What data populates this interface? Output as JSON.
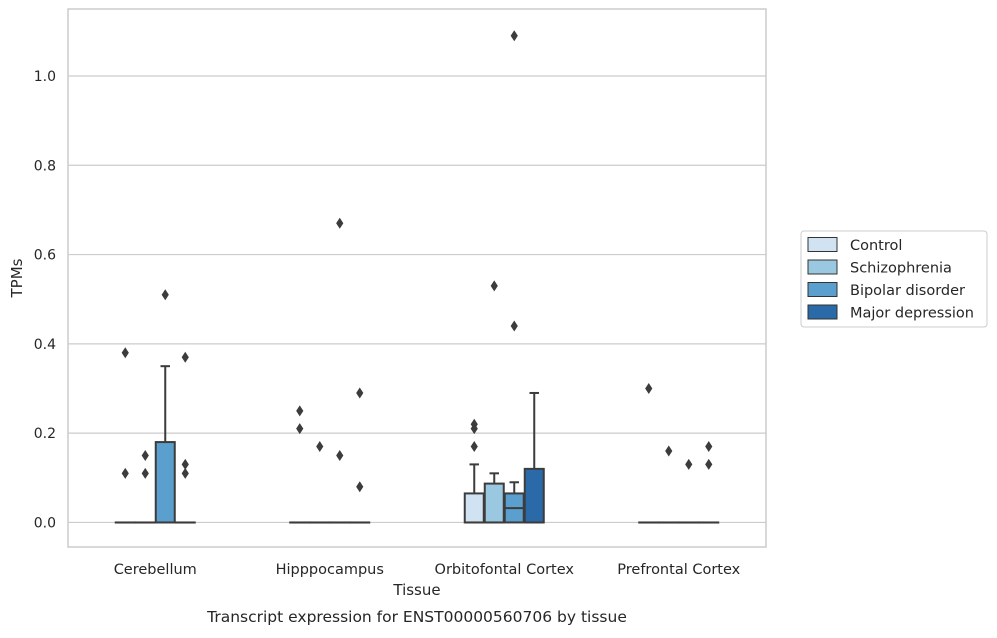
{
  "chart_data": {
    "type": "boxplot",
    "title": "",
    "caption": "Transcript expression for ENST00000560706 by tissue",
    "xlabel": "Tissue",
    "ylabel": "TPMs",
    "ylim": [
      -0.055,
      1.15
    ],
    "yticks": [
      0.0,
      0.2,
      0.4,
      0.6,
      0.8,
      1.0
    ],
    "ytick_labels": [
      "0.0",
      "0.2",
      "0.4",
      "0.6",
      "0.8",
      "1.0"
    ],
    "grid": "horizontal",
    "legend_position": "right",
    "categories": [
      "Cerebellum",
      "Hipppocampus",
      "Orbitofontal Cortex",
      "Prefrontal Cortex"
    ],
    "series": [
      {
        "name": "Control",
        "color": "#d1e2f2",
        "boxes": [
          {
            "q1": 0,
            "median": 0,
            "q3": 0,
            "whisker_low": 0,
            "whisker_high": 0,
            "outliers": [
              0.38,
              0.11
            ]
          },
          {
            "q1": 0,
            "median": 0,
            "q3": 0,
            "whisker_low": 0,
            "whisker_high": 0,
            "outliers": [
              0.25,
              0.21
            ]
          },
          {
            "q1": 0,
            "median": 0,
            "q3": 0.065,
            "whisker_low": 0,
            "whisker_high": 0.13,
            "outliers": [
              0.22,
              0.21,
              0.17
            ]
          },
          {
            "q1": 0,
            "median": 0,
            "q3": 0,
            "whisker_low": 0,
            "whisker_high": 0,
            "outliers": [
              0.3
            ]
          }
        ]
      },
      {
        "name": "Schizophrenia",
        "color": "#9ac8e0",
        "boxes": [
          {
            "q1": 0,
            "median": 0,
            "q3": 0,
            "whisker_low": 0,
            "whisker_high": 0,
            "outliers": [
              0.15,
              0.11
            ]
          },
          {
            "q1": 0,
            "median": 0,
            "q3": 0,
            "whisker_low": 0,
            "whisker_high": 0,
            "outliers": [
              0.17
            ]
          },
          {
            "q1": 0,
            "median": 0,
            "q3": 0.087,
            "whisker_low": 0,
            "whisker_high": 0.11,
            "outliers": [
              0.53
            ]
          },
          {
            "q1": 0,
            "median": 0,
            "q3": 0,
            "whisker_low": 0,
            "whisker_high": 0,
            "outliers": [
              0.16
            ]
          }
        ]
      },
      {
        "name": "Bipolar disorder",
        "color": "#5a9fcd",
        "boxes": [
          {
            "q1": 0,
            "median": 0,
            "q3": 0.18,
            "whisker_low": 0,
            "whisker_high": 0.35,
            "outliers": [
              0.51
            ]
          },
          {
            "q1": 0,
            "median": 0,
            "q3": 0,
            "whisker_low": 0,
            "whisker_high": 0,
            "outliers": [
              0.67,
              0.15
            ]
          },
          {
            "q1": 0,
            "median": 0.032,
            "q3": 0.065,
            "whisker_low": 0,
            "whisker_high": 0.09,
            "outliers": [
              1.09,
              0.44
            ]
          },
          {
            "q1": 0,
            "median": 0,
            "q3": 0,
            "whisker_low": 0,
            "whisker_high": 0,
            "outliers": [
              0.13
            ]
          }
        ]
      },
      {
        "name": "Major depression",
        "color": "#2b6aa8",
        "boxes": [
          {
            "q1": 0,
            "median": 0,
            "q3": 0,
            "whisker_low": 0,
            "whisker_high": 0,
            "outliers": [
              0.37,
              0.13,
              0.11
            ]
          },
          {
            "q1": 0,
            "median": 0,
            "q3": 0,
            "whisker_low": 0,
            "whisker_high": 0,
            "outliers": [
              0.29,
              0.08
            ]
          },
          {
            "q1": 0,
            "median": 0,
            "q3": 0.12,
            "whisker_low": 0,
            "whisker_high": 0.29,
            "outliers": []
          },
          {
            "q1": 0,
            "median": 0,
            "q3": 0,
            "whisker_low": 0,
            "whisker_high": 0,
            "outliers": [
              0.17,
              0.13
            ]
          }
        ]
      }
    ]
  }
}
